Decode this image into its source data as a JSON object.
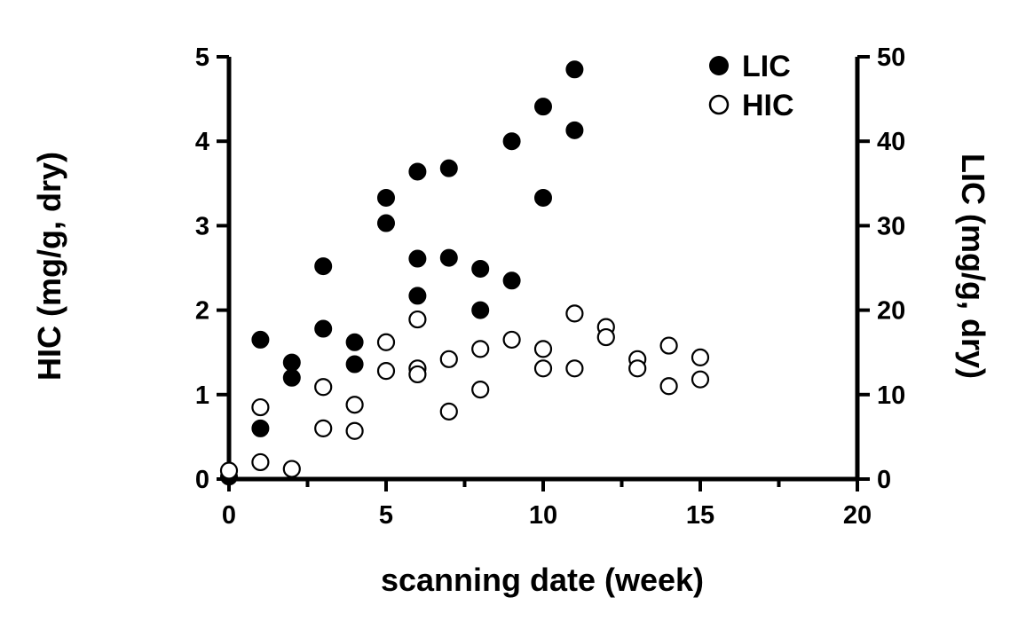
{
  "chart_data": {
    "type": "scatter",
    "title": "",
    "xlabel": "scanning date (week)",
    "ylabel_left": "HIC (mg/g, dry)",
    "ylabel_right": "LIC (mg/g, dry)",
    "xlim": [
      0,
      20
    ],
    "ylim_left": [
      0,
      5
    ],
    "ylim_right": [
      0,
      50
    ],
    "x_ticks": [
      "0",
      "5",
      "10",
      "15",
      "20"
    ],
    "y_ticks_left": [
      "0",
      "1",
      "2",
      "3",
      "4",
      "5"
    ],
    "y_ticks_right": [
      "0",
      "10",
      "20",
      "30",
      "40",
      "50"
    ],
    "grid": false,
    "legend_position": "top-right",
    "series": [
      {
        "name": "LIC",
        "axis": "right",
        "marker": "filled-circle",
        "color": "#000000",
        "points": [
          [
            0,
            0.3
          ],
          [
            1,
            16.5
          ],
          [
            1,
            6.0
          ],
          [
            2,
            13.8
          ],
          [
            2,
            12.0
          ],
          [
            3,
            25.2
          ],
          [
            3,
            17.8
          ],
          [
            4,
            16.2
          ],
          [
            4,
            13.6
          ],
          [
            5,
            33.3
          ],
          [
            5,
            30.3
          ],
          [
            6,
            36.4
          ],
          [
            6,
            26.1
          ],
          [
            6,
            21.7
          ],
          [
            7,
            36.8
          ],
          [
            7,
            26.2
          ],
          [
            8,
            24.9
          ],
          [
            8,
            20.0
          ],
          [
            9,
            40.0
          ],
          [
            9,
            23.5
          ],
          [
            10,
            44.1
          ],
          [
            10,
            33.3
          ],
          [
            11,
            48.5
          ],
          [
            11,
            41.3
          ]
        ]
      },
      {
        "name": "HIC",
        "axis": "left",
        "marker": "open-circle",
        "color": "#000000",
        "points": [
          [
            0,
            0.1
          ],
          [
            1,
            0.85
          ],
          [
            1,
            0.2
          ],
          [
            2,
            0.12
          ],
          [
            3,
            1.09
          ],
          [
            3,
            0.6
          ],
          [
            4,
            0.88
          ],
          [
            4,
            0.57
          ],
          [
            5,
            1.62
          ],
          [
            5,
            1.28
          ],
          [
            6,
            1.89
          ],
          [
            6,
            1.31
          ],
          [
            6,
            1.24
          ],
          [
            7,
            1.42
          ],
          [
            7,
            0.8
          ],
          [
            8,
            1.54
          ],
          [
            8,
            1.06
          ],
          [
            9,
            1.65
          ],
          [
            10,
            1.54
          ],
          [
            10,
            1.31
          ],
          [
            11,
            1.96
          ],
          [
            11,
            1.31
          ],
          [
            12,
            1.8
          ],
          [
            12,
            1.68
          ],
          [
            13,
            1.42
          ],
          [
            13,
            1.31
          ],
          [
            14,
            1.58
          ],
          [
            14,
            1.1
          ],
          [
            15,
            1.44
          ],
          [
            15,
            1.18
          ]
        ]
      }
    ]
  }
}
